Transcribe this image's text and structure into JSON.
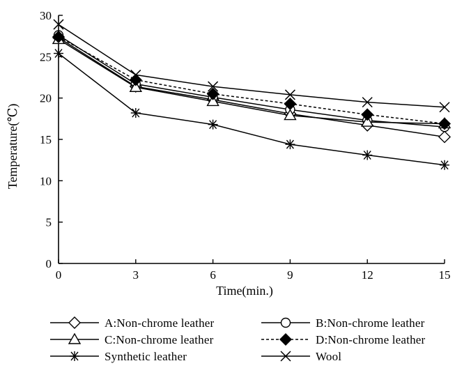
{
  "chart_data": {
    "type": "line",
    "xlabel": "Time(min.)",
    "ylabel": "Temperature(℃)",
    "x": [
      0,
      3,
      6,
      9,
      12,
      15
    ],
    "xlim": [
      0,
      15
    ],
    "ylim": [
      0,
      30
    ],
    "xticks": [
      0,
      3,
      6,
      9,
      12,
      15
    ],
    "yticks": [
      0,
      5,
      10,
      15,
      20,
      25,
      30
    ],
    "grid": false,
    "legend_position": "bottom",
    "series": [
      {
        "name": "A:Non-chrome leather",
        "marker": "diamond-open",
        "line": "solid",
        "values": [
          27.3,
          21.4,
          19.8,
          18.1,
          16.7,
          15.3
        ]
      },
      {
        "name": "B:Non-chrome leather",
        "marker": "circle-open",
        "line": "solid",
        "values": [
          27.6,
          21.7,
          20.1,
          18.6,
          17.3,
          16.5
        ]
      },
      {
        "name": "C:Non-chrome leather",
        "marker": "triangle-open",
        "line": "solid",
        "values": [
          27.1,
          21.3,
          19.6,
          17.9,
          17.1,
          16.9
        ]
      },
      {
        "name": "D:Non-chrome leather",
        "marker": "diamond-filled",
        "line": "dashed",
        "values": [
          27.4,
          22.2,
          20.5,
          19.3,
          18.0,
          16.9
        ]
      },
      {
        "name": "Synthetic leather",
        "marker": "star",
        "line": "solid",
        "values": [
          25.4,
          18.2,
          16.8,
          14.4,
          13.1,
          11.9
        ]
      },
      {
        "name": "Wool",
        "marker": "x",
        "line": "solid",
        "values": [
          28.9,
          22.8,
          21.4,
          20.4,
          19.5,
          18.9
        ]
      }
    ]
  }
}
